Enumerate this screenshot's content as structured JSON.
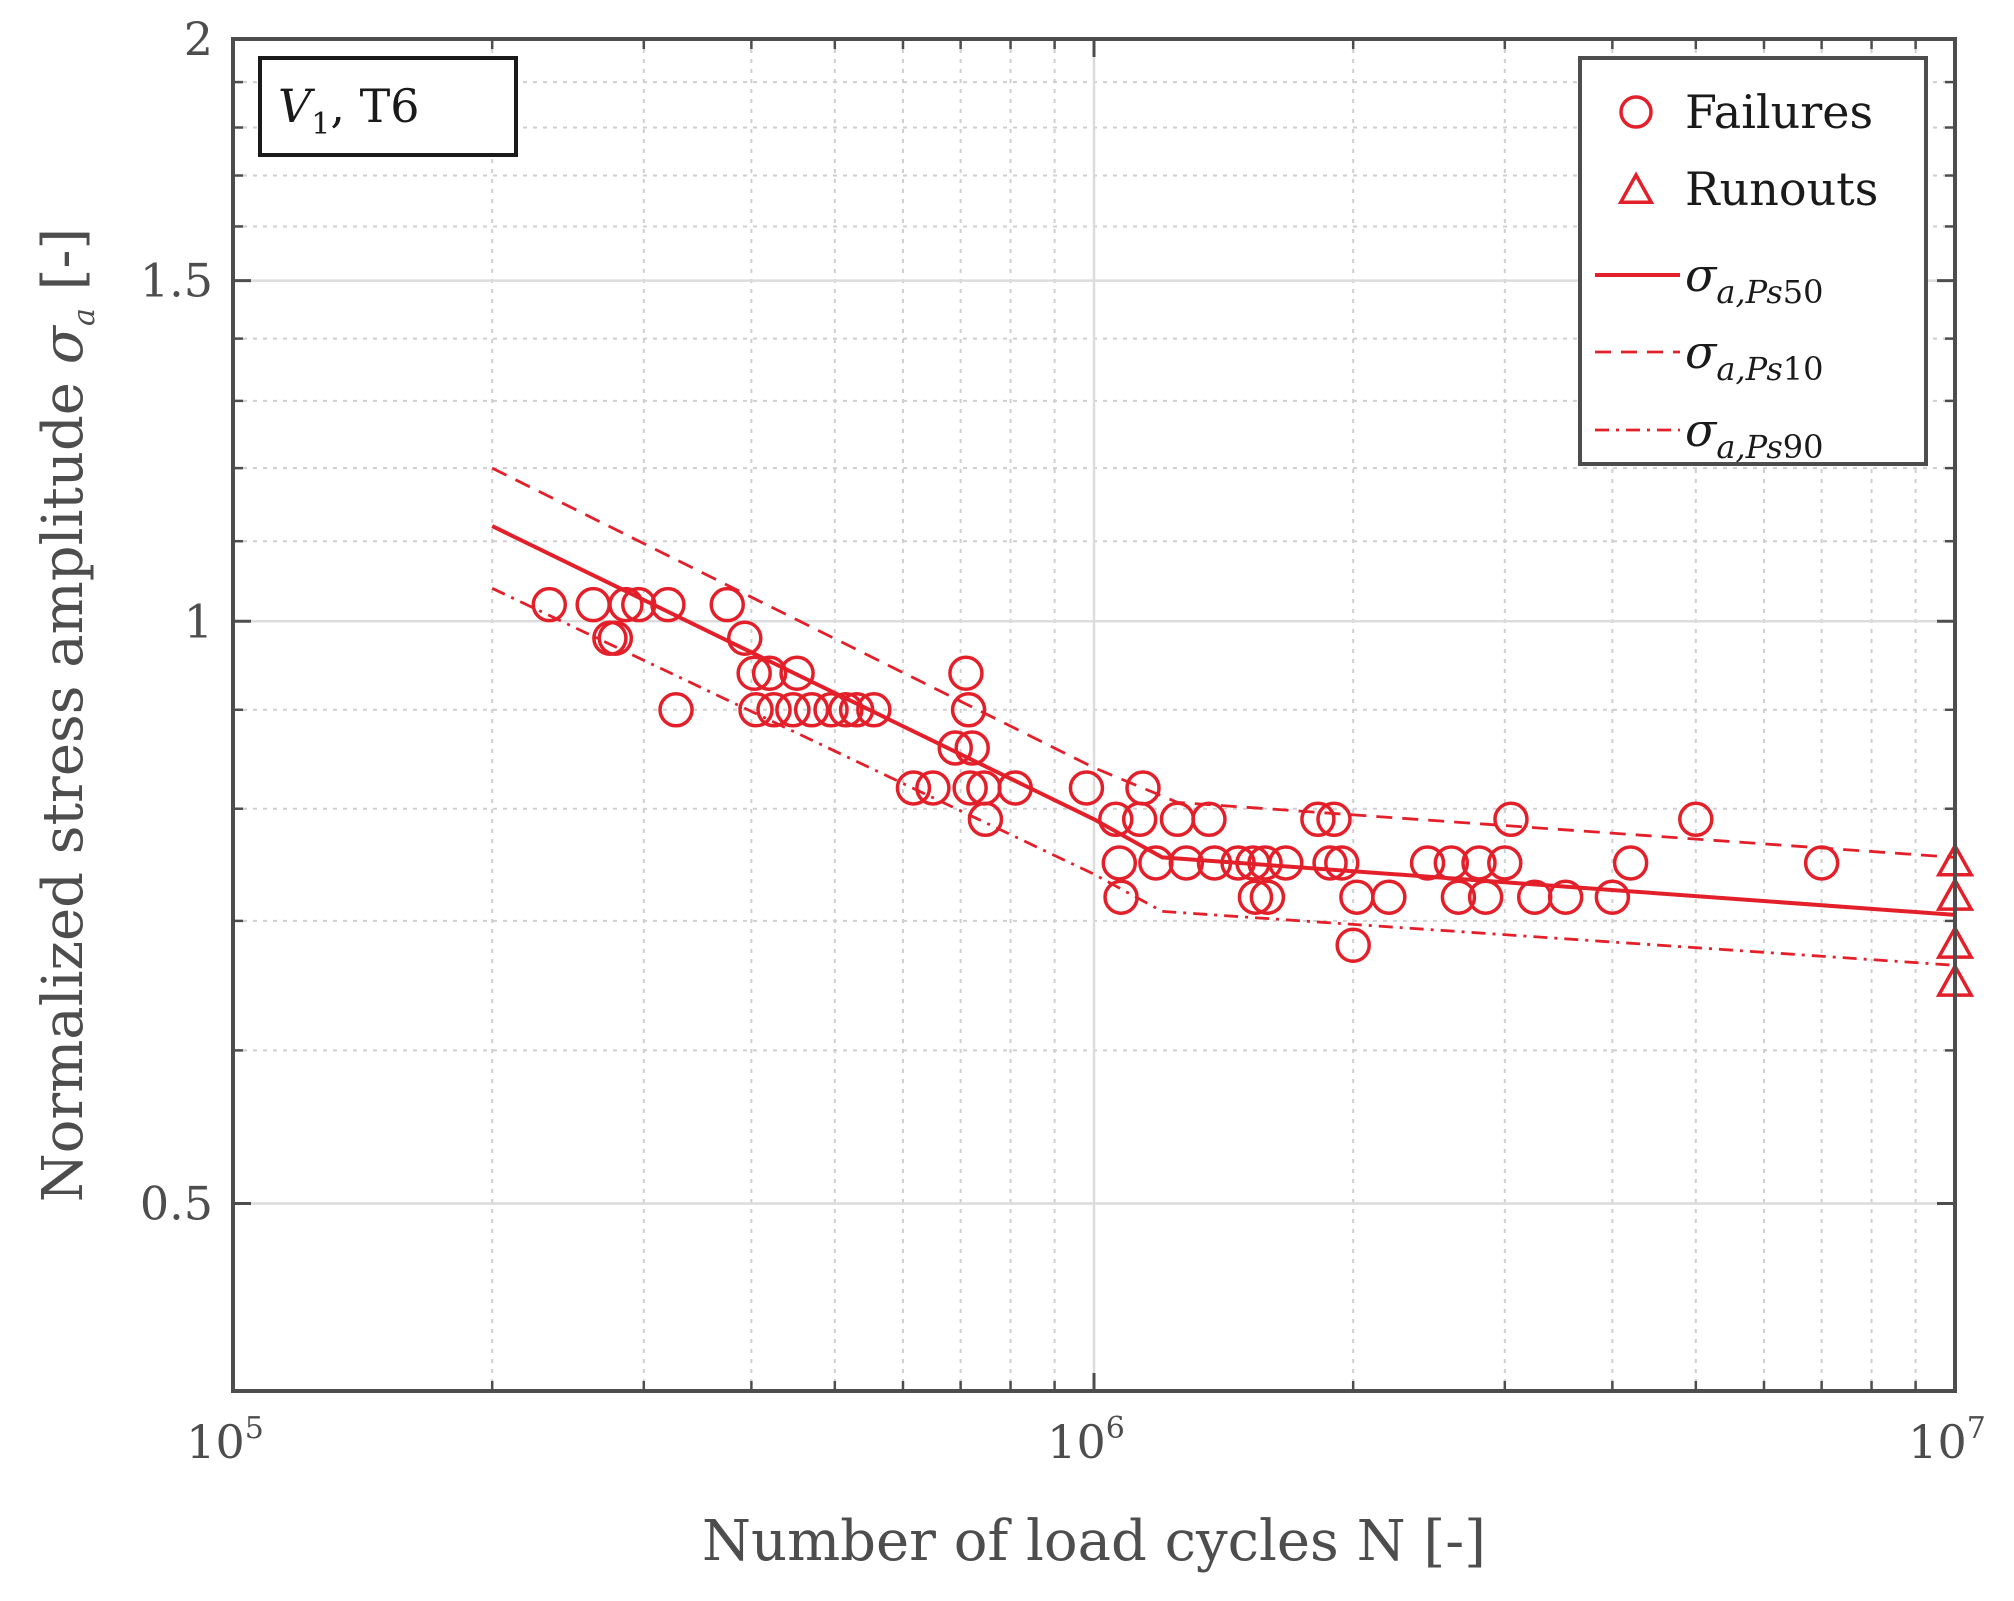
{
  "chart_data": {
    "type": "scatter",
    "x_scale": "log",
    "y_scale": "log",
    "xlim": [
      100000,
      10000000
    ],
    "ylim": [
      0.4,
      2
    ],
    "x_tick_labels": [
      {
        "value": 100000,
        "base": "10",
        "exp": "5"
      },
      {
        "value": 1000000,
        "base": "10",
        "exp": "6"
      },
      {
        "value": 10000000,
        "base": "10",
        "exp": "7"
      }
    ],
    "y_tick_labels": [
      {
        "value": 0.5,
        "label": "0.5"
      },
      {
        "value": 1,
        "label": "1"
      },
      {
        "value": 1.5,
        "label": "1.5"
      },
      {
        "value": 2,
        "label": "2"
      }
    ],
    "xlabel": "Number of load cycles N [-]",
    "ylabel_parts": {
      "before": "Normalized stress amplitude ",
      "symbol": "σ",
      "subscript": "a",
      "after": " [-]"
    },
    "annotation": {
      "v": "V",
      "v_sub": "1",
      "rest": ", T6"
    },
    "grid": true,
    "minor_grid": true,
    "legend_position": "top-right",
    "color": "#e3202a",
    "legend": [
      {
        "marker": "circle",
        "label": "Failures"
      },
      {
        "marker": "triangle",
        "label": "Runouts"
      },
      {
        "line": "solid",
        "symbol": "σ",
        "sub_italic": "a,Ps",
        "sub_num": "50"
      },
      {
        "line": "dashed",
        "symbol": "σ",
        "sub_italic": "a,Ps",
        "sub_num": "10"
      },
      {
        "line": "dashdot",
        "symbol": "σ",
        "sub_italic": "a,Ps",
        "sub_num": "90"
      }
    ],
    "series": [
      {
        "name": "Failures",
        "marker": "circle",
        "points": [
          [
            233000,
            1.02
          ],
          [
            262000,
            1.02
          ],
          [
            274000,
            0.98
          ],
          [
            278000,
            0.98
          ],
          [
            286000,
            1.02
          ],
          [
            296000,
            1.02
          ],
          [
            320000,
            1.02
          ],
          [
            327000,
            0.9
          ],
          [
            375000,
            1.02
          ],
          [
            393000,
            0.98
          ],
          [
            403000,
            0.94
          ],
          [
            405000,
            0.9
          ],
          [
            420000,
            0.94
          ],
          [
            425000,
            0.9
          ],
          [
            447000,
            0.9
          ],
          [
            452000,
            0.94
          ],
          [
            470000,
            0.9
          ],
          [
            495000,
            0.9
          ],
          [
            515000,
            0.9
          ],
          [
            530000,
            0.9
          ],
          [
            555000,
            0.9
          ],
          [
            617000,
            0.82
          ],
          [
            650000,
            0.82
          ],
          [
            690000,
            0.86
          ],
          [
            710000,
            0.94
          ],
          [
            715000,
            0.9
          ],
          [
            718000,
            0.82
          ],
          [
            722000,
            0.86
          ],
          [
            745000,
            0.82
          ],
          [
            748000,
            0.79
          ],
          [
            810000,
            0.82
          ],
          [
            980000,
            0.82
          ],
          [
            1060000,
            0.79
          ],
          [
            1070000,
            0.75
          ],
          [
            1075000,
            0.72
          ],
          [
            1130000,
            0.79
          ],
          [
            1140000,
            0.82
          ],
          [
            1180000,
            0.75
          ],
          [
            1250000,
            0.79
          ],
          [
            1280000,
            0.75
          ],
          [
            1360000,
            0.79
          ],
          [
            1380000,
            0.75
          ],
          [
            1470000,
            0.75
          ],
          [
            1530000,
            0.75
          ],
          [
            1540000,
            0.72
          ],
          [
            1580000,
            0.75
          ],
          [
            1590000,
            0.72
          ],
          [
            1670000,
            0.75
          ],
          [
            1820000,
            0.79
          ],
          [
            1900000,
            0.79
          ],
          [
            1880000,
            0.75
          ],
          [
            1940000,
            0.75
          ],
          [
            2000000,
            0.68
          ],
          [
            2020000,
            0.72
          ],
          [
            2200000,
            0.72
          ],
          [
            2440000,
            0.75
          ],
          [
            2600000,
            0.75
          ],
          [
            2650000,
            0.72
          ],
          [
            2800000,
            0.75
          ],
          [
            2850000,
            0.72
          ],
          [
            3000000,
            0.75
          ],
          [
            3050000,
            0.79
          ],
          [
            3250000,
            0.72
          ],
          [
            3530000,
            0.72
          ],
          [
            4000000,
            0.72
          ],
          [
            4200000,
            0.75
          ],
          [
            5000000,
            0.79
          ],
          [
            7000000,
            0.75
          ]
        ]
      },
      {
        "name": "Runouts",
        "marker": "triangle",
        "points": [
          [
            10000000,
            0.75
          ],
          [
            10000000,
            0.72
          ],
          [
            10000000,
            0.68
          ],
          [
            10000000,
            0.65
          ]
        ]
      }
    ],
    "lines": [
      {
        "name": "σa,Ps50",
        "style": "solid",
        "points": [
          [
            200000,
            1.12
          ],
          [
            1000000,
            0.79
          ],
          [
            1200000,
            0.755
          ],
          [
            10000000,
            0.705
          ]
        ]
      },
      {
        "name": "σa,Ps10",
        "style": "dashed",
        "points": [
          [
            200000,
            1.2
          ],
          [
            1000000,
            0.84
          ],
          [
            1250000,
            0.806
          ],
          [
            10000000,
            0.755
          ]
        ]
      },
      {
        "name": "σa,Ps90",
        "style": "dashdot",
        "points": [
          [
            200000,
            1.04
          ],
          [
            1000000,
            0.74
          ],
          [
            1200000,
            0.708
          ],
          [
            10000000,
            0.664
          ]
        ]
      }
    ]
  }
}
